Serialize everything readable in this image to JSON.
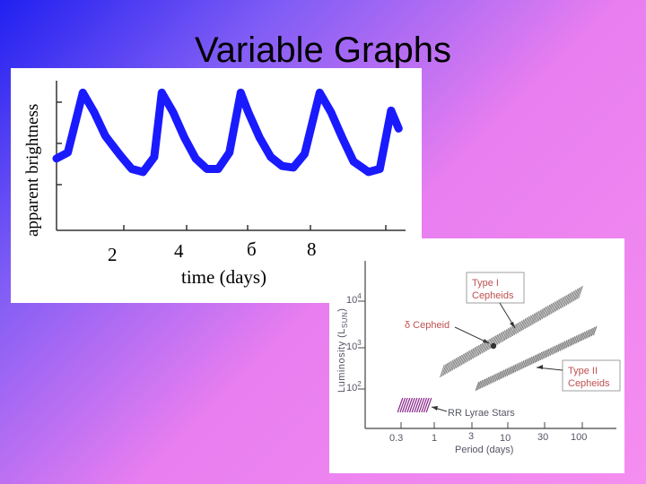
{
  "slide": {
    "title": "Variable Graphs"
  },
  "colors": {
    "curve": "#1a1aff",
    "annotation": "#c05050",
    "axis_text": "#555566",
    "band": "#808080",
    "rr_lyrae": "#8a2b8a"
  },
  "chart_data": [
    {
      "type": "line",
      "title": "",
      "xlabel": "time (days)",
      "ylabel": "apparent brightness",
      "x_ticks": [
        2,
        4,
        6,
        8
      ],
      "x_tick_labels": [
        "2",
        "4",
        "б",
        "8"
      ],
      "xlim": [
        0,
        10
      ],
      "ylim": [
        0,
        1
      ],
      "grid": false,
      "series": [
        {
          "x": [
            0.0,
            0.3,
            0.7,
            1.0,
            1.3,
            1.7,
            2.0,
            2.3,
            2.6,
            2.8,
            3.1,
            3.4,
            3.7,
            4.0,
            4.3,
            4.6,
            4.9,
            5.1,
            5.4,
            5.7,
            6.0,
            6.3,
            6.6,
            7.0,
            7.3,
            7.6,
            7.9,
            8.3,
            8.6,
            8.9,
            9.1
          ],
          "y": [
            0.48,
            0.52,
            0.92,
            0.79,
            0.63,
            0.5,
            0.41,
            0.39,
            0.49,
            0.92,
            0.79,
            0.62,
            0.48,
            0.41,
            0.41,
            0.52,
            0.92,
            0.79,
            0.62,
            0.49,
            0.43,
            0.42,
            0.51,
            0.92,
            0.79,
            0.62,
            0.46,
            0.39,
            0.41,
            0.8,
            0.68
          ]
        }
      ]
    },
    {
      "type": "scatter",
      "title": "",
      "xlabel": "Period (days)",
      "ylabel": "Luminosity (L_SUN)",
      "x_scale": "log",
      "y_scale": "log",
      "x_ticks": [
        0.3,
        1,
        3,
        10,
        30,
        100
      ],
      "x_tick_labels": [
        "0.3",
        "1",
        "3",
        "10",
        "30",
        "100"
      ],
      "y_ticks": [
        100,
        1000,
        10000
      ],
      "y_tick_labels": [
        "10²",
        "10³",
        "10⁴"
      ],
      "series": [
        {
          "name": "Type I Cepheids",
          "x": [
            3,
            10,
            30,
            50
          ],
          "y": [
            700,
            2000,
            6000,
            10000
          ]
        },
        {
          "name": "δ Cepheid",
          "x": [
            5.4
          ],
          "y": [
            1600
          ]
        },
        {
          "name": "Type II Cepheids",
          "x": [
            3.5,
            10,
            30,
            55
          ],
          "y": [
            200,
            450,
            1100,
            2000
          ]
        },
        {
          "name": "RR Lyrae Stars",
          "x": [
            0.4,
            0.8
          ],
          "y": [
            100,
            100
          ]
        }
      ],
      "annotations": [
        "Type I Cepheids",
        "δ Cepheid",
        "Type II Cepheids",
        "RR Lyrae Stars"
      ]
    }
  ],
  "left_chart": {
    "ylabel": "apparent brightness",
    "xlabel": "time (days)",
    "tick_labels": [
      "2",
      "4",
      "б",
      "8"
    ]
  },
  "right_chart": {
    "ylabel_main": "Luminosity (L",
    "ylabel_sub": "SUN",
    "ylabel_close": ")",
    "y_ticks": [
      {
        "base": "10",
        "exp": "4"
      },
      {
        "base": "10",
        "exp": "3"
      },
      {
        "base": "10",
        "exp": "2"
      }
    ],
    "x_tick_labels": [
      "0.3",
      "1",
      "3",
      "10",
      "30",
      "100"
    ],
    "xlabel": "Period (days)",
    "ann_type1_line1": "Type I",
    "ann_type1_line2": "Cepheids",
    "ann_delta": "δ Cepheid",
    "ann_type2_line1": "Type II",
    "ann_type2_line2": "Cepheids",
    "ann_rr": "RR Lyrae Stars"
  }
}
